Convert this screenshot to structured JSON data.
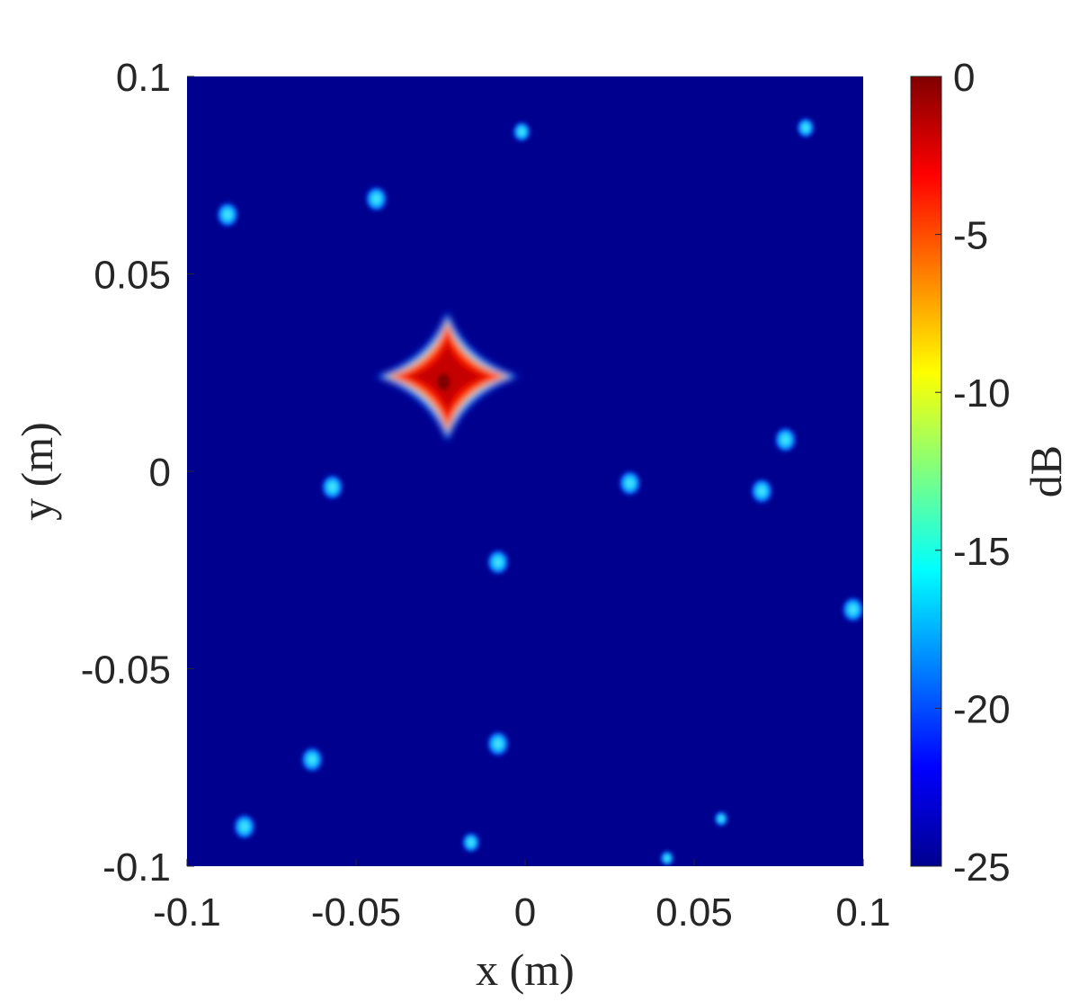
{
  "chart_data": {
    "type": "heatmap",
    "title": "",
    "xlabel": "x (m)",
    "ylabel": "y (m)",
    "xlim": [
      -0.1,
      0.1
    ],
    "ylim": [
      -0.1,
      0.1
    ],
    "xticks": [
      -0.1,
      -0.05,
      0,
      0.05,
      0.1
    ],
    "xtick_labels": [
      "-0.1",
      "-0.05",
      "0",
      "0.05",
      "0.1"
    ],
    "yticks": [
      -0.1,
      -0.05,
      0,
      0.05,
      0.1
    ],
    "ytick_labels": [
      "-0.1",
      "-0.05",
      "0",
      "0.05",
      "0.1"
    ],
    "colorbar": {
      "label": "dB",
      "colormap": "jet",
      "clim": [
        -25,
        0
      ],
      "ticks": [
        0,
        -5,
        -10,
        -15,
        -20,
        -25
      ],
      "tick_labels": [
        "0",
        "-5",
        "-10",
        "-15",
        "-20",
        "-25"
      ]
    },
    "background_level_db": -25,
    "main_peak": {
      "x": -0.023,
      "y": 0.024,
      "level_db": 0,
      "shape": "cross",
      "arm_half_length_x": 0.018,
      "arm_half_length_y": 0.014
    },
    "sidelobes": [
      {
        "x": -0.088,
        "y": 0.065,
        "level_db": -16
      },
      {
        "x": -0.044,
        "y": 0.069,
        "level_db": -16
      },
      {
        "x": -0.001,
        "y": 0.086,
        "level_db": -17
      },
      {
        "x": 0.083,
        "y": 0.087,
        "level_db": -17
      },
      {
        "x": -0.057,
        "y": -0.004,
        "level_db": -16
      },
      {
        "x": 0.031,
        "y": -0.003,
        "level_db": -16
      },
      {
        "x": 0.07,
        "y": -0.005,
        "level_db": -16
      },
      {
        "x": 0.077,
        "y": 0.008,
        "level_db": -16
      },
      {
        "x": -0.008,
        "y": -0.023,
        "level_db": -16
      },
      {
        "x": 0.097,
        "y": -0.035,
        "level_db": -16
      },
      {
        "x": -0.063,
        "y": -0.073,
        "level_db": -16
      },
      {
        "x": -0.008,
        "y": -0.069,
        "level_db": -16
      },
      {
        "x": -0.083,
        "y": -0.09,
        "level_db": -16
      },
      {
        "x": -0.016,
        "y": -0.094,
        "level_db": -17
      },
      {
        "x": 0.058,
        "y": -0.088,
        "level_db": -18
      },
      {
        "x": 0.042,
        "y": -0.098,
        "level_db": -18
      }
    ]
  },
  "colors": {
    "background": "#00008f",
    "jet_stops": [
      "#00008f",
      "#0000ff",
      "#00ffff",
      "#ffff00",
      "#ff0000",
      "#800000"
    ]
  }
}
